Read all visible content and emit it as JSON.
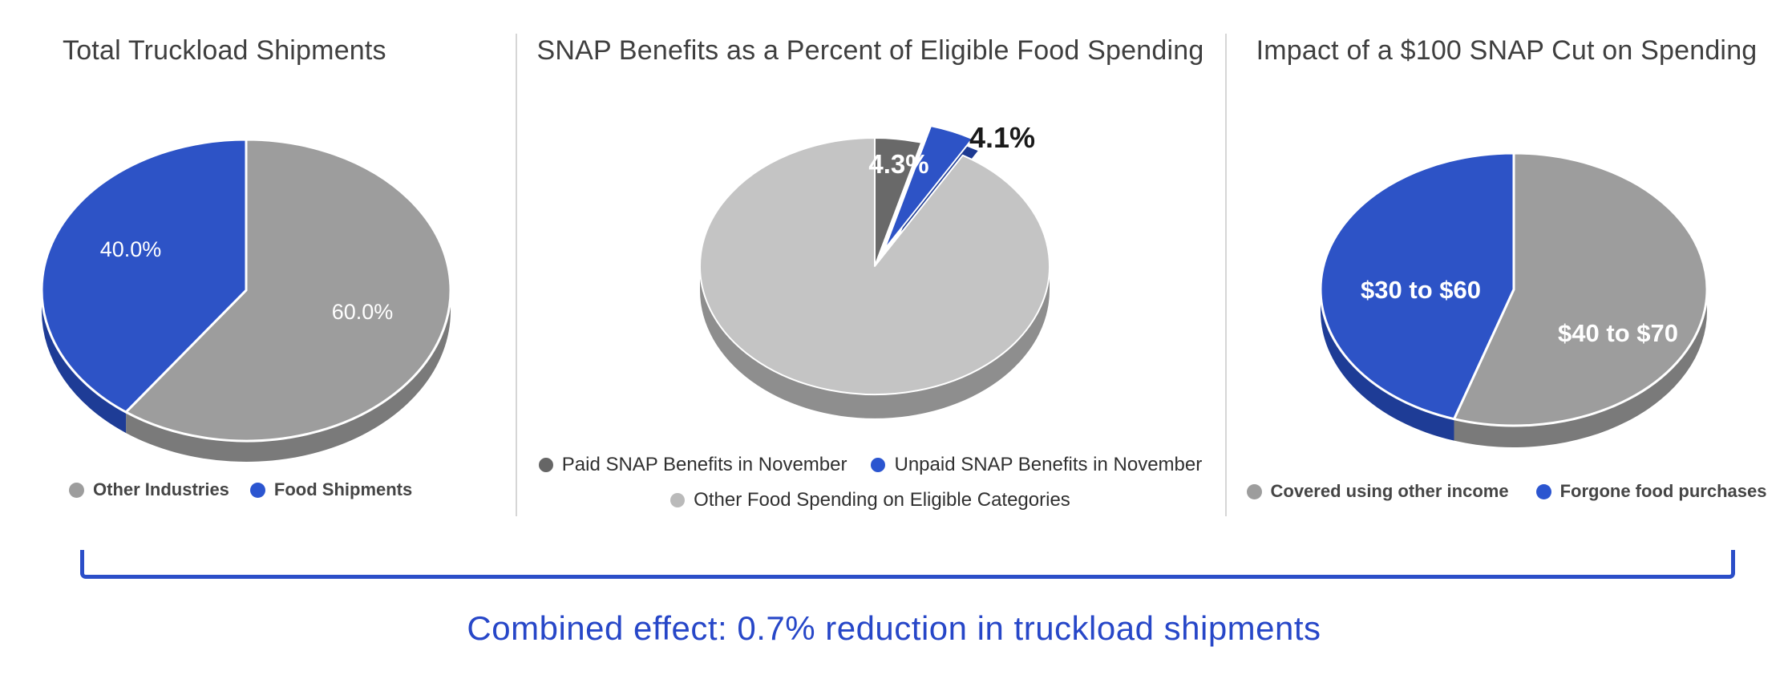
{
  "combined_note": {
    "text": "Combined effect: 0.7% reduction in truckload shipments",
    "color": "#2747c8"
  },
  "bracket": {
    "color": "#2b4ec8"
  },
  "accent_blue": "#2d53c6",
  "chart_data": [
    {
      "type": "pie",
      "style": "3d",
      "title": "Total Truckload Shipments",
      "legend_position": "bottom",
      "slices": [
        {
          "name": "Other Industries",
          "value": 60.0,
          "display": "60.0%",
          "color": "#9d9d9d",
          "side_color": "#7a7a7a",
          "label_color": "#ffffff",
          "explode": false
        },
        {
          "name": "Food Shipments",
          "value": 40.0,
          "display": "40.0%",
          "color": "#2d53c6",
          "side_color": "#1e3c96",
          "label_color": "#ffffff",
          "explode": false
        }
      ],
      "legend": [
        {
          "label": "Other Industries",
          "color": "#9d9d9d"
        },
        {
          "label": "Food Shipments",
          "color": "#2b55d0"
        }
      ]
    },
    {
      "type": "pie",
      "style": "3d",
      "title": "SNAP Benefits as a Percent of Eligible Food Spending",
      "legend_position": "bottom",
      "slices": [
        {
          "name": "Paid SNAP Benefits in November",
          "value": 4.3,
          "display": "4.3%",
          "color": "#696969",
          "side_color": "#4e4e4e",
          "label_color": "#ffffff",
          "explode": false
        },
        {
          "name": "Unpaid SNAP Benefits in November",
          "value": 4.1,
          "display": "4.1%",
          "color": "#2d53c6",
          "side_color": "#1d3a92",
          "label_color": "#1a1a1a",
          "explode": true
        },
        {
          "name": "Other Food Spending on Eligible Categories",
          "value": 91.6,
          "display": null,
          "color": "#c4c4c4",
          "side_color": "#8e8e8e",
          "label_color": null,
          "explode": false
        }
      ],
      "legend": [
        {
          "label": "Paid SNAP Benefits in November",
          "color": "#666666"
        },
        {
          "label": "Unpaid SNAP Benefits in November",
          "color": "#2b55d0"
        },
        {
          "label": "Other Food Spending on Eligible Categories",
          "color": "#bababa"
        }
      ]
    },
    {
      "type": "pie",
      "style": "3d",
      "title": "Impact of a $100 SNAP Cut on Spending",
      "legend_position": "bottom",
      "slices": [
        {
          "name": "Covered using other income",
          "value": 55.0,
          "display": "$40 to $70",
          "color": "#9d9d9d",
          "side_color": "#7a7a7a",
          "label_color": "#ffffff",
          "explode": false
        },
        {
          "name": "Forgone food purchases",
          "value": 45.0,
          "display": "$30 to $60",
          "color": "#2d53c6",
          "side_color": "#1e3c96",
          "label_color": "#ffffff",
          "explode": false
        }
      ],
      "legend": [
        {
          "label": "Covered using other income",
          "color": "#9d9d9d"
        },
        {
          "label": "Forgone food purchases",
          "color": "#2b55d0"
        }
      ]
    }
  ]
}
